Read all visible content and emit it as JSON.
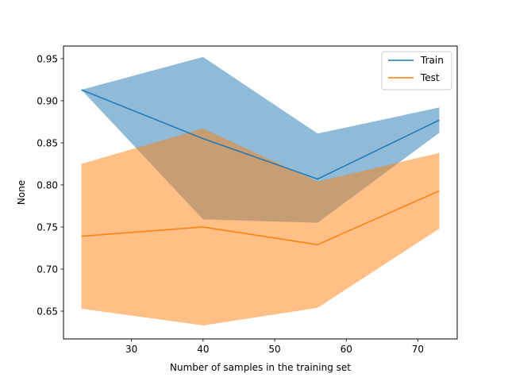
{
  "chart_data": {
    "type": "line",
    "xlabel": "Number of samples in the training set",
    "ylabel": "None",
    "xlim": [
      20.5,
      75.5
    ],
    "ylim": [
      0.617,
      0.965
    ],
    "xticks": [
      30,
      40,
      50,
      60,
      70
    ],
    "yticks": [
      0.65,
      0.7,
      0.75,
      0.8,
      0.85,
      0.9,
      0.95
    ],
    "x": [
      23,
      40,
      56,
      73
    ],
    "legend": {
      "placement": "upper-right"
    },
    "grid": false,
    "series": [
      {
        "name": "Train",
        "color": "#1f77b4",
        "band_color": "#1f77b4",
        "values": [
          0.913,
          0.855,
          0.807,
          0.877
        ],
        "band_upper": [
          0.913,
          0.952,
          0.861,
          0.892
        ],
        "band_lower": [
          0.913,
          0.759,
          0.755,
          0.862
        ]
      },
      {
        "name": "Test",
        "color": "#ff7f0e",
        "band_color": "#ff7f0e",
        "values": [
          0.739,
          0.75,
          0.729,
          0.793
        ],
        "band_upper": [
          0.825,
          0.867,
          0.804,
          0.838
        ],
        "band_lower": [
          0.653,
          0.633,
          0.654,
          0.748
        ]
      }
    ]
  }
}
